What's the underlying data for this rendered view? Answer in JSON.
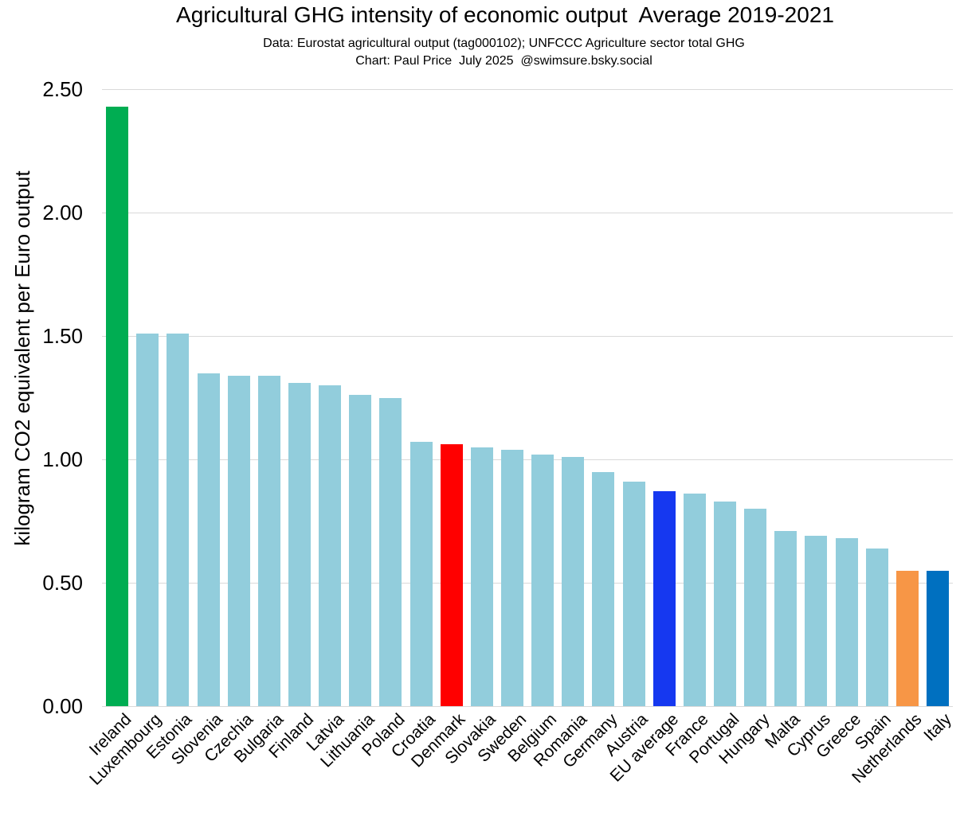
{
  "header": {
    "title": "Agricultural GHG intensity of economic output  Average 2019-2021",
    "subtitle_data_source": "Data: Eurostat agricultural output (tag000102); UNFCCC Agriculture sector total GHG",
    "subtitle_credit": "Chart: Paul Price  July 2025  @swimsure.bsky.social"
  },
  "chart_data": {
    "type": "bar",
    "title": "Agricultural GHG intensity of economic output  Average 2019-2021",
    "xlabel": "",
    "ylabel": "kilogram CO2 equivalent per Euro output",
    "ylim": [
      0,
      2.5
    ],
    "yticks": [
      0.0,
      0.5,
      1.0,
      1.5,
      2.0,
      2.5
    ],
    "ytick_labels": [
      "0.00",
      "0.50",
      "1.00",
      "1.50",
      "2.00",
      "2.50"
    ],
    "grid": true,
    "legend_position": "none",
    "categories": [
      "Ireland",
      "Luxembourg",
      "Estonia",
      "Slovenia",
      "Czechia",
      "Bulgaria",
      "Finland",
      "Latvia",
      "Lithuania",
      "Poland",
      "Croatia",
      "Denmark",
      "Slovakia",
      "Sweden",
      "Belgium",
      "Romania",
      "Germany",
      "Austria",
      "EU average",
      "France",
      "Portugal",
      "Hungary",
      "Malta",
      "Cyprus",
      "Greece",
      "Spain",
      "Netherlands",
      "Italy"
    ],
    "values": [
      2.43,
      1.51,
      1.51,
      1.35,
      1.34,
      1.34,
      1.31,
      1.3,
      1.26,
      1.25,
      1.07,
      1.06,
      1.05,
      1.04,
      1.02,
      1.01,
      0.95,
      0.91,
      0.87,
      0.86,
      0.83,
      0.8,
      0.71,
      0.69,
      0.68,
      0.64,
      0.55,
      0.55
    ],
    "bar_colors": [
      "#00AD52",
      "#92CDDC",
      "#92CDDC",
      "#92CDDC",
      "#92CDDC",
      "#92CDDC",
      "#92CDDC",
      "#92CDDC",
      "#92CDDC",
      "#92CDDC",
      "#92CDDC",
      "#FF0000",
      "#92CDDC",
      "#92CDDC",
      "#92CDDC",
      "#92CDDC",
      "#92CDDC",
      "#92CDDC",
      "#1638F0",
      "#92CDDC",
      "#92CDDC",
      "#92CDDC",
      "#92CDDC",
      "#92CDDC",
      "#92CDDC",
      "#92CDDC",
      "#F79646",
      "#0070C0"
    ],
    "highlight_colors": {
      "ireland_green": "#00AD52",
      "denmark_red": "#FF0000",
      "eu_average_blue": "#1638F0",
      "netherlands_orange": "#F79646",
      "italy_dark_blue": "#0070C0",
      "default_light_blue": "#92CDDC"
    },
    "gridline_color": "#D9D9D9",
    "text_color": "#000000"
  }
}
